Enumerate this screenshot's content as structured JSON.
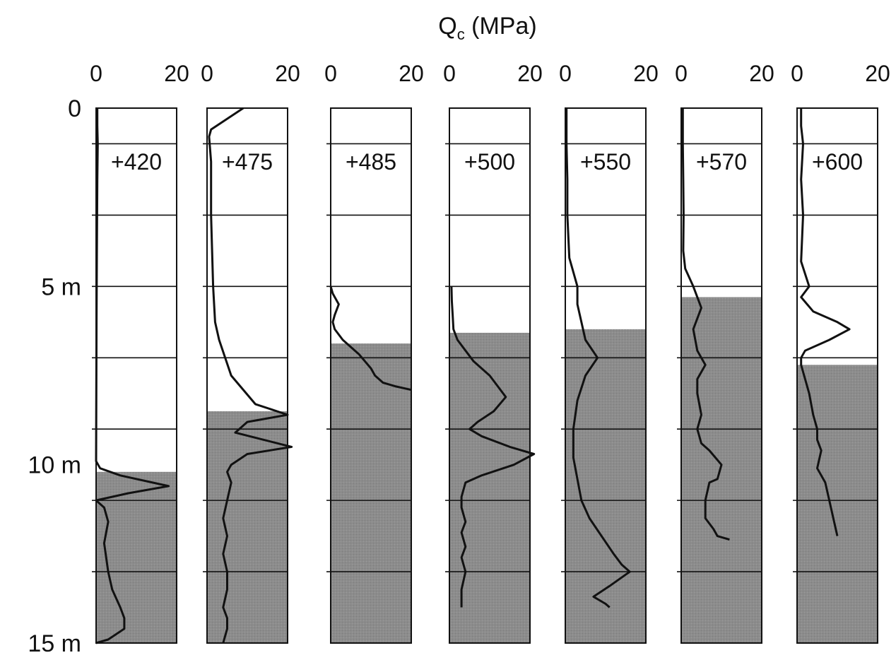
{
  "chart_data": {
    "type": "line",
    "title": "Q",
    "title_subscript": "c",
    "title_unit": " (MPa)",
    "x_tick_labels": [
      "0",
      "20"
    ],
    "xlim": [
      0,
      20
    ],
    "ylim": [
      0,
      15
    ],
    "y_tick_labels": [
      {
        "value": 0,
        "label": "0"
      },
      {
        "value": 5,
        "label": "5 m"
      },
      {
        "value": 10,
        "label": "10 m"
      },
      {
        "value": 15,
        "label": "15 m"
      }
    ],
    "gridlines_y": [
      1,
      3,
      5,
      7,
      9,
      11,
      13
    ],
    "colors": {
      "shade": "#8c8c8c",
      "line": "#111111"
    },
    "series": [
      {
        "name": "+420",
        "shade_top": 10.2,
        "x": [
          0.3,
          0.3,
          0.4,
          0.3,
          0.2,
          0.1,
          0,
          1,
          6,
          18,
          8,
          0,
          2,
          3,
          2,
          3,
          4,
          6,
          7,
          7,
          3,
          0
        ],
        "y": [
          0,
          0.5,
          1,
          2,
          4,
          6,
          9.9,
          10.1,
          10.3,
          10.6,
          10.8,
          11,
          11.2,
          11.6,
          12.2,
          13,
          13.5,
          14,
          14.3,
          14.6,
          14.9,
          15
        ]
      },
      {
        "name": "+475",
        "shade_top": 8.5,
        "x": [
          9,
          5,
          1,
          0.5,
          1,
          1,
          1.5,
          2,
          3,
          6,
          12,
          20,
          10,
          7,
          14,
          21,
          10,
          6,
          5,
          6,
          5,
          4,
          5,
          4,
          5,
          5,
          4,
          5,
          5,
          4
        ],
        "y": [
          0,
          0.3,
          0.6,
          0.8,
          1.5,
          3,
          5,
          6,
          6.5,
          7.5,
          8.3,
          8.6,
          8.8,
          9.1,
          9.3,
          9.5,
          9.7,
          10,
          10.2,
          10.5,
          11,
          11.5,
          12,
          12.5,
          13,
          13.5,
          14,
          14.3,
          14.6,
          15
        ]
      },
      {
        "name": "+485",
        "shade_top": 6.6,
        "x": [
          0,
          0.5,
          2,
          1,
          0.5,
          1,
          3,
          5,
          7,
          8.5,
          10,
          11,
          13,
          16,
          20
        ],
        "y": [
          5,
          5.2,
          5.5,
          5.8,
          6.0,
          6.2,
          6.5,
          6.7,
          6.9,
          7.1,
          7.3,
          7.5,
          7.7,
          7.8,
          7.9
        ]
      },
      {
        "name": "+500",
        "shade_top": 6.3,
        "x": [
          0.5,
          0.6,
          0.8,
          1,
          2,
          4,
          6,
          10,
          12,
          14,
          11,
          7,
          5,
          8,
          15,
          21,
          16,
          8,
          4,
          3,
          3,
          4,
          3,
          4,
          3,
          4,
          3,
          3
        ],
        "y": [
          5,
          5.4,
          5.8,
          6.2,
          6.5,
          6.8,
          7.1,
          7.5,
          7.8,
          8.1,
          8.5,
          8.8,
          9.0,
          9.2,
          9.5,
          9.7,
          10.0,
          10.3,
          10.5,
          10.9,
          11.2,
          11.6,
          11.9,
          12.3,
          12.6,
          13.0,
          13.5,
          14.0
        ]
      },
      {
        "name": "+550",
        "shade_top": 6.2,
        "x": [
          0.3,
          0.3,
          0.5,
          0.5,
          1,
          2,
          3,
          3,
          5,
          8,
          5,
          3,
          2,
          2,
          3,
          4,
          6,
          9,
          12,
          14,
          16,
          11,
          7,
          10,
          11
        ],
        "y": [
          0,
          1,
          2,
          3,
          4.2,
          4.6,
          5.0,
          5.5,
          6.5,
          7.0,
          7.5,
          8.2,
          9.0,
          9.8,
          10.4,
          11.0,
          11.5,
          12.0,
          12.5,
          12.8,
          13.0,
          13.4,
          13.7,
          13.9,
          14.0
        ]
      },
      {
        "name": "+570",
        "shade_top": 5.3,
        "x": [
          0.4,
          0.4,
          0.5,
          0.6,
          0.5,
          1,
          3,
          5,
          3,
          4,
          6,
          4,
          4,
          5,
          4,
          5,
          7,
          10,
          9,
          7,
          6,
          6,
          8,
          9,
          12
        ],
        "y": [
          0,
          1,
          2,
          3,
          4,
          4.5,
          5.0,
          5.6,
          6.2,
          6.8,
          7.2,
          7.6,
          8.0,
          8.6,
          9.0,
          9.4,
          9.6,
          10.0,
          10.4,
          10.5,
          11.0,
          11.5,
          11.8,
          12.0,
          12.1
        ]
      },
      {
        "name": "+600",
        "shade_top": 7.2,
        "x": [
          1,
          1,
          1.5,
          1,
          1.5,
          1,
          3,
          1,
          4,
          10,
          13,
          8,
          2,
          1,
          1,
          2,
          3,
          4,
          5,
          5,
          6,
          5,
          7,
          8,
          9,
          10
        ],
        "y": [
          0,
          0.5,
          1,
          2,
          3,
          4.3,
          5.0,
          5.3,
          5.7,
          6.0,
          6.2,
          6.5,
          6.8,
          7.0,
          7.2,
          7.6,
          8.0,
          8.6,
          9.0,
          9.3,
          9.6,
          10.1,
          10.5,
          11.0,
          11.5,
          12.0
        ]
      }
    ]
  }
}
